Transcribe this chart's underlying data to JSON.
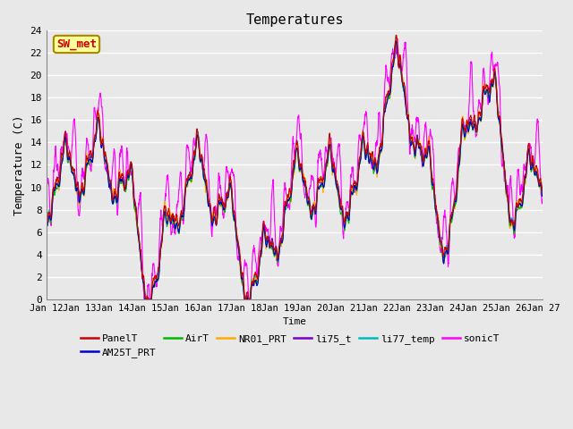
{
  "title": "Temperatures",
  "xlabel": "Time",
  "ylabel": "Temperature (C)",
  "ylim": [
    0,
    24
  ],
  "yticks": [
    0,
    2,
    4,
    6,
    8,
    10,
    12,
    14,
    16,
    18,
    20,
    22,
    24
  ],
  "x_tick_labels": [
    "Jan 12",
    "Jan 13",
    "Jan 14",
    "Jan 15",
    "Jan 16",
    "Jan 17",
    "Jan 18",
    "Jan 19",
    "Jan 20",
    "Jan 21",
    "Jan 22",
    "Jan 23",
    "Jan 24",
    "Jan 25",
    "Jan 26",
    "Jan 27"
  ],
  "colors": {
    "PanelT": "#cc0000",
    "AM25T_PRT": "#0000cc",
    "AirT": "#00bb00",
    "NR01_PRT": "#ffaa00",
    "li75_t": "#7700cc",
    "li77_temp": "#00bbbb",
    "sonicT": "#ff00ff"
  },
  "annotation_text": "SW_met",
  "annotation_box_facecolor": "#ffff99",
  "annotation_box_edgecolor": "#aa8800",
  "annotation_text_color": "#cc0000",
  "bg_color": "#e8e8e8",
  "plot_bg_color": "#e8e8e8",
  "grid_color": "#ffffff",
  "font_family": "monospace",
  "legend_ncol": 6,
  "legend_series_row1": [
    "PanelT",
    "AM25T_PRT",
    "AirT",
    "NR01_PRT",
    "li75_t",
    "li77_temp"
  ],
  "legend_series_row2": [
    "sonicT"
  ]
}
